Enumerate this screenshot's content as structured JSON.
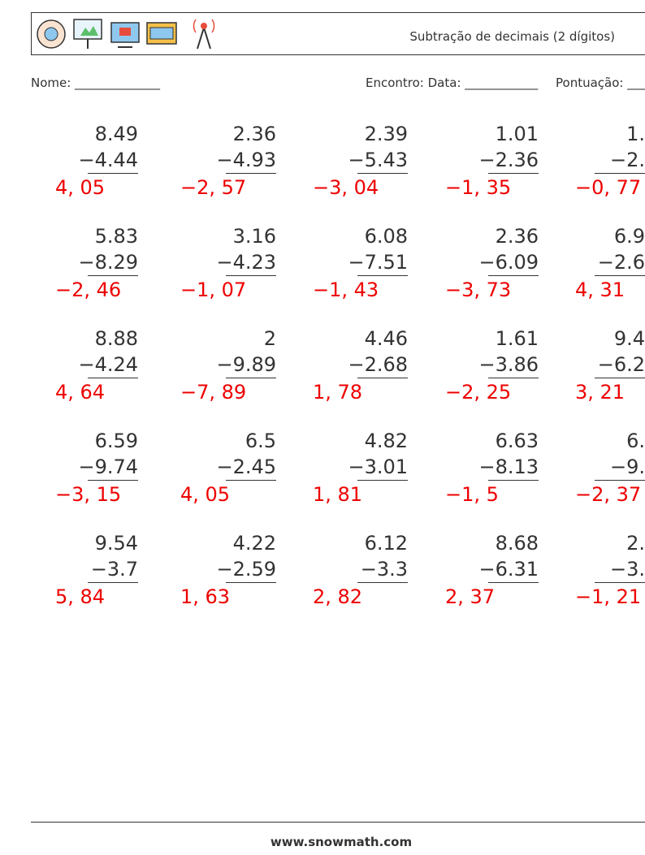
{
  "header": {
    "title": "Subtração de decimais (2 dígitos)"
  },
  "fields": {
    "name": "Nome: ______________",
    "meeting": "Encontro: Data: ____________",
    "score": "Pontuação: ___"
  },
  "problems": [
    [
      {
        "top": "8.49",
        "bottom": "−4.44",
        "answer": "4, 05"
      },
      {
        "top": "2.36",
        "bottom": "−4.93",
        "answer": "−2, 57"
      },
      {
        "top": "2.39",
        "bottom": "−5.43",
        "answer": "−3, 04"
      },
      {
        "top": "1.01",
        "bottom": "−2.36",
        "answer": "−1, 35"
      },
      {
        "top": "1.",
        "bottom": "−2.",
        "answer": "−0, 77"
      }
    ],
    [
      {
        "top": "5.83",
        "bottom": "−8.29",
        "answer": "−2, 46"
      },
      {
        "top": "3.16",
        "bottom": "−4.23",
        "answer": "−1, 07"
      },
      {
        "top": "6.08",
        "bottom": "−7.51",
        "answer": "−1, 43"
      },
      {
        "top": "2.36",
        "bottom": "−6.09",
        "answer": "−3, 73"
      },
      {
        "top": "6.9",
        "bottom": "−2.6",
        "answer": "4, 31"
      }
    ],
    [
      {
        "top": "8.88",
        "bottom": "−4.24",
        "answer": "4, 64"
      },
      {
        "top": "2",
        "bottom": "−9.89",
        "answer": "−7, 89"
      },
      {
        "top": "4.46",
        "bottom": "−2.68",
        "answer": "1, 78"
      },
      {
        "top": "1.61",
        "bottom": "−3.86",
        "answer": "−2, 25"
      },
      {
        "top": "9.4",
        "bottom": "−6.2",
        "answer": "3, 21"
      }
    ],
    [
      {
        "top": "6.59",
        "bottom": "−9.74",
        "answer": "−3, 15"
      },
      {
        "top": "6.5",
        "bottom": "−2.45",
        "answer": "4, 05"
      },
      {
        "top": "4.82",
        "bottom": "−3.01",
        "answer": "1, 81"
      },
      {
        "top": "6.63",
        "bottom": "−8.13",
        "answer": "−1, 5"
      },
      {
        "top": "6.",
        "bottom": "−9.",
        "answer": "−2, 37"
      }
    ],
    [
      {
        "top": "9.54",
        "bottom": "−3.7",
        "answer": "5, 84"
      },
      {
        "top": "4.22",
        "bottom": "−2.59",
        "answer": "1, 63"
      },
      {
        "top": "6.12",
        "bottom": "−3.3",
        "answer": "2, 82"
      },
      {
        "top": "8.68",
        "bottom": "−6.31",
        "answer": "2, 37"
      },
      {
        "top": "2.",
        "bottom": "−3.",
        "answer": "−1, 21"
      }
    ]
  ],
  "footer": {
    "site": "www.snowmath.com"
  }
}
